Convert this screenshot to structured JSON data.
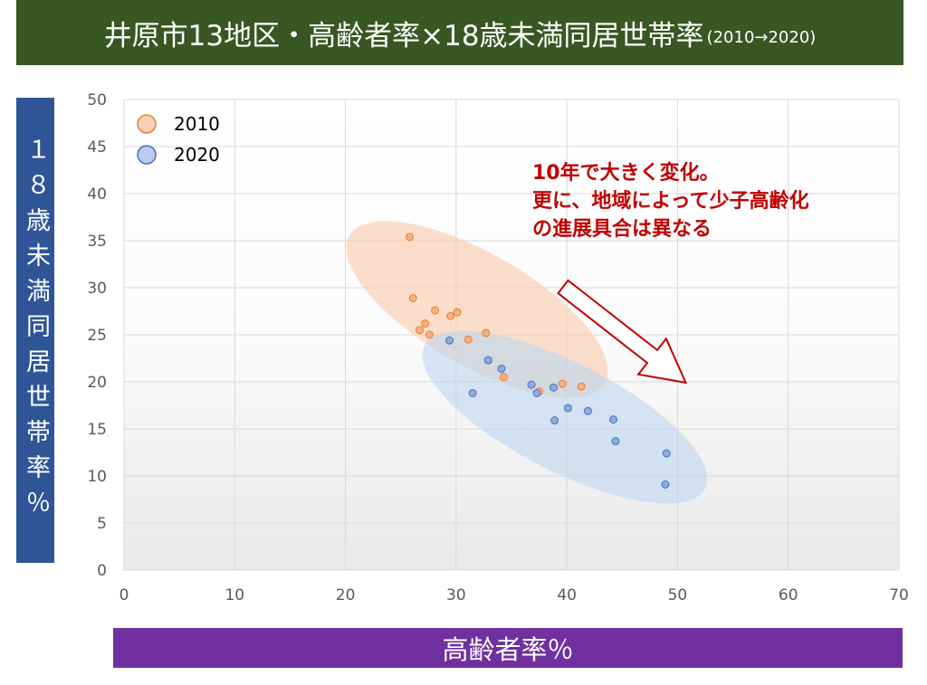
{
  "colors": {
    "title_bar": "#385723",
    "ylabel_box": "#2f5597",
    "xlabel_bar": "#7030a0",
    "annotation_text": "#c00000",
    "arrow_outline": "#c00000",
    "gridline": "#d9d9d9",
    "ellipse_2010": "#f8cbad",
    "ellipse_2020": "#bdd7ee"
  },
  "chart_data": {
    "type": "scatter",
    "title": "井原市13地区・高齢者率×18歳未満同居世帯率",
    "subtitle": "(2010→2020)",
    "xlabel": "高齢者率％",
    "ylabel": "１８歳未満同居世帯率％",
    "xlim": [
      0,
      70
    ],
    "ylim": [
      0,
      50
    ],
    "xticks": [
      0,
      10,
      20,
      30,
      40,
      50,
      60,
      70
    ],
    "yticks": [
      0,
      5,
      10,
      15,
      20,
      25,
      30,
      35,
      40,
      45,
      50
    ],
    "grid": true,
    "legend": "top-left",
    "series": [
      {
        "name": "2010",
        "color": "#ed7d31",
        "fill": "#f4b183",
        "points": [
          [
            25.8,
            35.4
          ],
          [
            26.1,
            28.9
          ],
          [
            27.2,
            26.2
          ],
          [
            26.7,
            25.5
          ],
          [
            27.6,
            25.0
          ],
          [
            28.1,
            27.6
          ],
          [
            29.5,
            27.0
          ],
          [
            30.1,
            27.4
          ],
          [
            31.1,
            24.5
          ],
          [
            32.7,
            25.2
          ],
          [
            34.3,
            20.5
          ],
          [
            37.5,
            19.0
          ],
          [
            39.6,
            19.8
          ],
          [
            41.3,
            19.5
          ]
        ]
      },
      {
        "name": "2020",
        "color": "#4472c4",
        "fill": "#8faadc",
        "points": [
          [
            29.4,
            24.4
          ],
          [
            32.9,
            22.3
          ],
          [
            34.1,
            21.4
          ],
          [
            31.5,
            18.8
          ],
          [
            36.8,
            19.7
          ],
          [
            37.3,
            18.8
          ],
          [
            38.8,
            19.4
          ],
          [
            38.9,
            15.9
          ],
          [
            40.1,
            17.2
          ],
          [
            41.9,
            16.9
          ],
          [
            44.2,
            16.0
          ],
          [
            44.4,
            13.7
          ],
          [
            49.0,
            12.4
          ],
          [
            48.9,
            9.1
          ]
        ]
      }
    ],
    "annotations": [
      "10年で大きく変化。",
      "更に、地域によって少子高齢化",
      "の進展具合は異なる"
    ]
  }
}
